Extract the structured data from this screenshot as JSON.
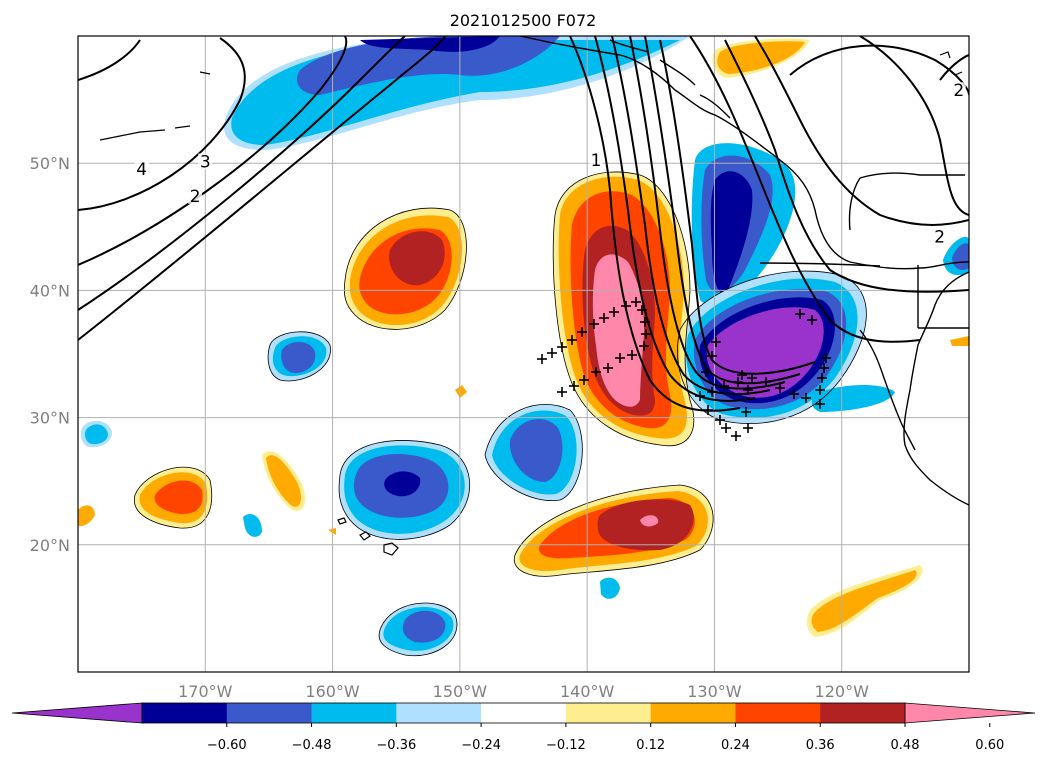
{
  "title": "2021012500 F072",
  "map": {
    "lon_range": [
      -180,
      -110
    ],
    "lat_range": [
      10,
      60
    ],
    "lon_ticks": [
      {
        "value": -170,
        "label": "170°W"
      },
      {
        "value": -160,
        "label": "160°W"
      },
      {
        "value": -150,
        "label": "150°W"
      },
      {
        "value": -140,
        "label": "140°W"
      },
      {
        "value": -130,
        "label": "130°W"
      },
      {
        "value": -120,
        "label": "120°W"
      }
    ],
    "lat_ticks": [
      {
        "value": 50,
        "label": "50°N"
      },
      {
        "value": 40,
        "label": "40°N"
      },
      {
        "value": 30,
        "label": "30°N"
      },
      {
        "value": 20,
        "label": "20°N"
      }
    ],
    "grid": true,
    "contour_labels": [
      {
        "text": "4",
        "lon": -175,
        "lat": 49.3
      },
      {
        "text": "3",
        "lon": -170,
        "lat": 49.9
      },
      {
        "text": "2",
        "lon": -170.8,
        "lat": 47.2
      },
      {
        "text": "1",
        "lon": -139.3,
        "lat": 50.0
      },
      {
        "text": "2",
        "lon": -112.3,
        "lat": 44.0
      },
      {
        "text": "2",
        "lon": -110.8,
        "lat": 55.5
      }
    ]
  },
  "colorbar": {
    "ticks": [
      "−0.60",
      "−0.48",
      "−0.36",
      "−0.24",
      "−0.12",
      "0.12",
      "0.24",
      "0.36",
      "0.48",
      "0.60"
    ],
    "colors": [
      "#9933cc",
      "#000099",
      "#3a5acc",
      "#00bbee",
      "#b0e0ff",
      "#ffffff",
      "#ffee90",
      "#ffaa00",
      "#ff4400",
      "#b22222",
      "#ff88aa"
    ],
    "extend": "both"
  }
}
